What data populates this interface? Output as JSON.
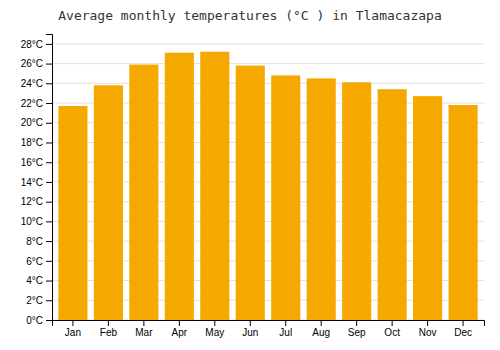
{
  "chart_data": {
    "type": "bar",
    "title": "Average monthly temperatures (°C ) in Tlamacazapa",
    "categories": [
      "Jan",
      "Feb",
      "Mar",
      "Apr",
      "May",
      "Jun",
      "Jul",
      "Aug",
      "Sep",
      "Oct",
      "Nov",
      "Dec"
    ],
    "values": [
      21.7,
      23.8,
      25.9,
      27.1,
      27.2,
      25.8,
      24.8,
      24.5,
      24.1,
      23.4,
      22.7,
      21.8
    ],
    "color": "#F5A800",
    "ylim": [
      0,
      29
    ],
    "yticks": [
      {
        "value": 0,
        "label": "0°C"
      },
      {
        "value": 2,
        "label": "2°C"
      },
      {
        "value": 4,
        "label": "4°C"
      },
      {
        "value": 6,
        "label": "6°C"
      },
      {
        "value": 8,
        "label": "8°C"
      },
      {
        "value": 10,
        "label": "10°C"
      },
      {
        "value": 12,
        "label": "12°C"
      },
      {
        "value": 14,
        "label": "14°C"
      },
      {
        "value": 16,
        "label": "16°C"
      },
      {
        "value": 18,
        "label": "18°C"
      },
      {
        "value": 20,
        "label": "20°C"
      },
      {
        "value": 22,
        "label": "22°C"
      },
      {
        "value": 24,
        "label": "24°C"
      },
      {
        "value": 26,
        "label": "26°C"
      },
      {
        "value": 28,
        "label": "28°C"
      }
    ],
    "grid": true
  }
}
